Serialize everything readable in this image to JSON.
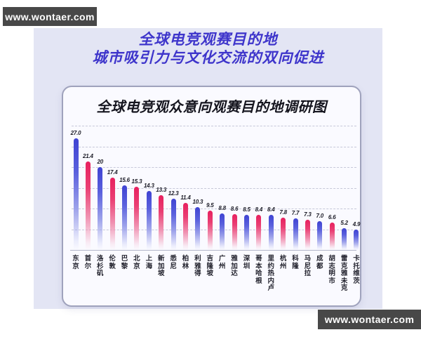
{
  "watermark_top": {
    "text": "www.wontaer.com"
  },
  "watermark_bottom": {
    "text": "www.wontaer.com"
  },
  "header": {
    "title_line1": "全球电竞观赛目的地",
    "title_line2": "城市吸引力与文化交流的双向促进",
    "title_color": "#3e35cb"
  },
  "chart_card": {
    "title": "全球电竞观众意向观赛目的地调研图"
  },
  "chart_data": {
    "type": "bar",
    "title": "全球电竞观众意向观赛目的地调研图",
    "categories": [
      "东京",
      "首尔",
      "洛杉矶",
      "伦敦",
      "巴黎",
      "北京",
      "上海",
      "新加坡",
      "悉尼",
      "柏林",
      "利雅得",
      "吉隆坡",
      "广州",
      "雅加达",
      "深圳",
      "哥本哈根",
      "里约热内卢",
      "杭州",
      "科隆",
      "马尼拉",
      "成都",
      "胡志明市",
      "雷克雅未克",
      "卡托维茨"
    ],
    "values": [
      27.0,
      21.4,
      20,
      17.4,
      15.6,
      15.3,
      14.3,
      13.3,
      12.3,
      11.4,
      10.3,
      9.5,
      8.8,
      8.6,
      8.5,
      8.4,
      8.4,
      7.8,
      7.7,
      7.3,
      7.0,
      6.6,
      5.2,
      4.9
    ],
    "value_labels": [
      "27.0",
      "21.4",
      "20",
      "17.4",
      "15.6",
      "15.3",
      "14.3",
      "13.3",
      "12.3",
      "11.4",
      "10.3",
      "9.5",
      "8.8",
      "8.6",
      "8.5",
      "8.4",
      "8.4",
      "7.8",
      "7.7",
      "7.3",
      "7.0",
      "6.6",
      "5.2",
      "4.9"
    ],
    "bar_colors": [
      "blue",
      "pink",
      "blue",
      "pink",
      "blue",
      "pink",
      "blue",
      "pink",
      "blue",
      "pink",
      "blue",
      "pink",
      "blue",
      "pink",
      "blue",
      "pink",
      "blue",
      "pink",
      "blue",
      "pink",
      "blue",
      "pink",
      "blue",
      "blue"
    ],
    "xlabel": "",
    "ylabel": "",
    "ylim": [
      0,
      30
    ],
    "gridline_values": [
      0,
      5,
      10,
      15,
      20,
      25,
      30
    ],
    "grid_style": "dashed-horizontal",
    "legend_position": "none",
    "palette": {
      "blue": "#3f43d2",
      "pink": "#e7205e"
    }
  },
  "colors": {
    "page_bg": "#ffffff",
    "panel_bg": "#e3e5f4",
    "card_bg": "#fafaff",
    "card_border": "#9fa2bc",
    "gridline": "#c6c8d9",
    "watermark_bg": "#484848",
    "watermark_text": "#ffffff",
    "text_dark": "#1c1c27"
  }
}
